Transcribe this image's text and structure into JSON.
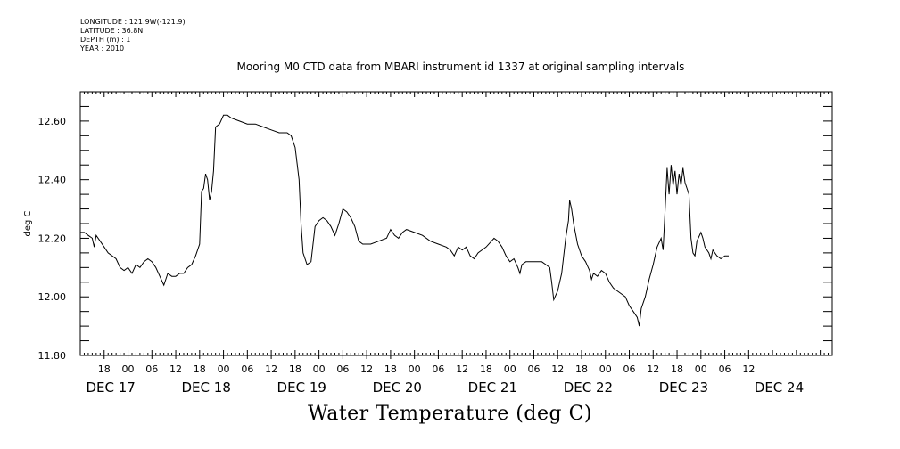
{
  "meta": {
    "longitude": "LONGITUDE : 121.9W(-121.9)",
    "latitude": "LATITUDE : 36.8N",
    "depth": "DEPTH (m) : 1",
    "year": "YEAR : 2010"
  },
  "chart_data": {
    "type": "line",
    "title": "Mooring M0 CTD data from MBARI instrument id 1337 at original sampling intervals",
    "xlabel": "Water Temperature (deg C)",
    "ylabel": "deg C",
    "xlim_hours": [
      0,
      189
    ],
    "ylim": [
      11.8,
      12.7
    ],
    "yticks": [
      "12.60",
      "12.40",
      "12.20",
      "12.00",
      "11.80"
    ],
    "ytick_values": [
      12.6,
      12.4,
      12.2,
      12.0,
      11.8
    ],
    "hour_ticks": [
      {
        "label": "18"
      },
      {
        "label": "00"
      },
      {
        "label": "06"
      },
      {
        "label": "12"
      },
      {
        "label": "18"
      },
      {
        "label": "00"
      },
      {
        "label": "06"
      },
      {
        "label": "12"
      },
      {
        "label": "18"
      },
      {
        "label": "00"
      },
      {
        "label": "06"
      },
      {
        "label": "12"
      },
      {
        "label": "18"
      },
      {
        "label": "00"
      },
      {
        "label": "06"
      },
      {
        "label": "12"
      },
      {
        "label": "18"
      },
      {
        "label": "00"
      },
      {
        "label": "06"
      },
      {
        "label": "12"
      },
      {
        "label": "18"
      },
      {
        "label": "00"
      },
      {
        "label": "06"
      },
      {
        "label": "12"
      },
      {
        "label": "18"
      },
      {
        "label": "00"
      },
      {
        "label": "06"
      },
      {
        "label": "12"
      }
    ],
    "day_labels": [
      "DEC 17",
      "DEC 18",
      "DEC 19",
      "DEC 20",
      "DEC 21",
      "DEC 22",
      "DEC 23",
      "DEC 24"
    ],
    "series": [
      {
        "color": "#000000",
        "points": [
          [
            0,
            12.22
          ],
          [
            1,
            12.22
          ],
          [
            2,
            12.21
          ],
          [
            3,
            12.2
          ],
          [
            3.5,
            12.17
          ],
          [
            4,
            12.21
          ],
          [
            5,
            12.19
          ],
          [
            6,
            12.17
          ],
          [
            7,
            12.15
          ],
          [
            8,
            12.14
          ],
          [
            9,
            12.13
          ],
          [
            10,
            12.1
          ],
          [
            11,
            12.09
          ],
          [
            12,
            12.1
          ],
          [
            13,
            12.08
          ],
          [
            14,
            12.11
          ],
          [
            15,
            12.1
          ],
          [
            16,
            12.12
          ],
          [
            17,
            12.13
          ],
          [
            18,
            12.12
          ],
          [
            19,
            12.1
          ],
          [
            20,
            12.07
          ],
          [
            21,
            12.04
          ],
          [
            22,
            12.08
          ],
          [
            23,
            12.07
          ],
          [
            24,
            12.07
          ],
          [
            25,
            12.08
          ],
          [
            26,
            12.08
          ],
          [
            27,
            12.1
          ],
          [
            28,
            12.11
          ],
          [
            29,
            12.14
          ],
          [
            30,
            12.18
          ],
          [
            30.5,
            12.36
          ],
          [
            31,
            12.37
          ],
          [
            31.5,
            12.42
          ],
          [
            32,
            12.4
          ],
          [
            32.5,
            12.33
          ],
          [
            33,
            12.36
          ],
          [
            33.5,
            12.43
          ],
          [
            34,
            12.58
          ],
          [
            35,
            12.59
          ],
          [
            36,
            12.62
          ],
          [
            37,
            12.62
          ],
          [
            38,
            12.61
          ],
          [
            40,
            12.6
          ],
          [
            42,
            12.59
          ],
          [
            44,
            12.59
          ],
          [
            46,
            12.58
          ],
          [
            48,
            12.57
          ],
          [
            50,
            12.56
          ],
          [
            52,
            12.56
          ],
          [
            53,
            12.55
          ],
          [
            54,
            12.51
          ],
          [
            55,
            12.4
          ],
          [
            55.5,
            12.25
          ],
          [
            56,
            12.15
          ],
          [
            57,
            12.11
          ],
          [
            58,
            12.12
          ],
          [
            59,
            12.24
          ],
          [
            60,
            12.26
          ],
          [
            61,
            12.27
          ],
          [
            62,
            12.26
          ],
          [
            63,
            12.24
          ],
          [
            64,
            12.21
          ],
          [
            65,
            12.25
          ],
          [
            66,
            12.3
          ],
          [
            67,
            12.29
          ],
          [
            68,
            12.27
          ],
          [
            69,
            12.24
          ],
          [
            70,
            12.19
          ],
          [
            71,
            12.18
          ],
          [
            73,
            12.18
          ],
          [
            75,
            12.19
          ],
          [
            77,
            12.2
          ],
          [
            78,
            12.23
          ],
          [
            79,
            12.21
          ],
          [
            80,
            12.2
          ],
          [
            81,
            12.22
          ],
          [
            82,
            12.23
          ],
          [
            84,
            12.22
          ],
          [
            86,
            12.21
          ],
          [
            88,
            12.19
          ],
          [
            90,
            12.18
          ],
          [
            92,
            12.17
          ],
          [
            93,
            12.16
          ],
          [
            94,
            12.14
          ],
          [
            95,
            12.17
          ],
          [
            96,
            12.16
          ],
          [
            97,
            12.17
          ],
          [
            98,
            12.14
          ],
          [
            99,
            12.13
          ],
          [
            100,
            12.15
          ],
          [
            102,
            12.17
          ],
          [
            104,
            12.2
          ],
          [
            105,
            12.19
          ],
          [
            106,
            12.17
          ],
          [
            107,
            12.14
          ],
          [
            108,
            12.12
          ],
          [
            109,
            12.13
          ],
          [
            110,
            12.1
          ],
          [
            110.5,
            12.08
          ],
          [
            111,
            12.11
          ],
          [
            112,
            12.12
          ],
          [
            114,
            12.12
          ],
          [
            116,
            12.12
          ],
          [
            117,
            12.11
          ],
          [
            118,
            12.1
          ],
          [
            118.5,
            12.05
          ],
          [
            119,
            11.99
          ],
          [
            120,
            12.02
          ],
          [
            121,
            12.08
          ],
          [
            122,
            12.2
          ],
          [
            122.7,
            12.26
          ],
          [
            123,
            12.33
          ],
          [
            123.5,
            12.3
          ],
          [
            124,
            12.25
          ],
          [
            125,
            12.18
          ],
          [
            126,
            12.14
          ],
          [
            127,
            12.12
          ],
          [
            128,
            12.09
          ],
          [
            128.5,
            12.06
          ],
          [
            129,
            12.08
          ],
          [
            130,
            12.07
          ],
          [
            131,
            12.09
          ],
          [
            132,
            12.08
          ],
          [
            133,
            12.05
          ],
          [
            134,
            12.03
          ],
          [
            135,
            12.02
          ],
          [
            136,
            12.01
          ],
          [
            137,
            12.0
          ],
          [
            138,
            11.97
          ],
          [
            139,
            11.95
          ],
          [
            140,
            11.93
          ],
          [
            140.5,
            11.9
          ],
          [
            141,
            11.96
          ],
          [
            142,
            12.0
          ],
          [
            143,
            12.06
          ],
          [
            144,
            12.11
          ],
          [
            145,
            12.17
          ],
          [
            146,
            12.2
          ],
          [
            146.5,
            12.16
          ],
          [
            147,
            12.3
          ],
          [
            147.5,
            12.44
          ],
          [
            148,
            12.35
          ],
          [
            148.5,
            12.45
          ],
          [
            149,
            12.38
          ],
          [
            149.5,
            12.43
          ],
          [
            150,
            12.35
          ],
          [
            150.5,
            12.42
          ],
          [
            151,
            12.38
          ],
          [
            151.5,
            12.44
          ],
          [
            152,
            12.39
          ],
          [
            152.5,
            12.37
          ],
          [
            153,
            12.35
          ],
          [
            153.5,
            12.2
          ],
          [
            154,
            12.15
          ],
          [
            154.5,
            12.14
          ],
          [
            155,
            12.19
          ],
          [
            156,
            12.22
          ],
          [
            156.5,
            12.2
          ],
          [
            157,
            12.17
          ],
          [
            158,
            12.15
          ],
          [
            158.5,
            12.13
          ],
          [
            159,
            12.16
          ],
          [
            160,
            12.14
          ],
          [
            161,
            12.13
          ],
          [
            162,
            12.14
          ],
          [
            163,
            12.14
          ]
        ]
      }
    ],
    "grid": false
  }
}
